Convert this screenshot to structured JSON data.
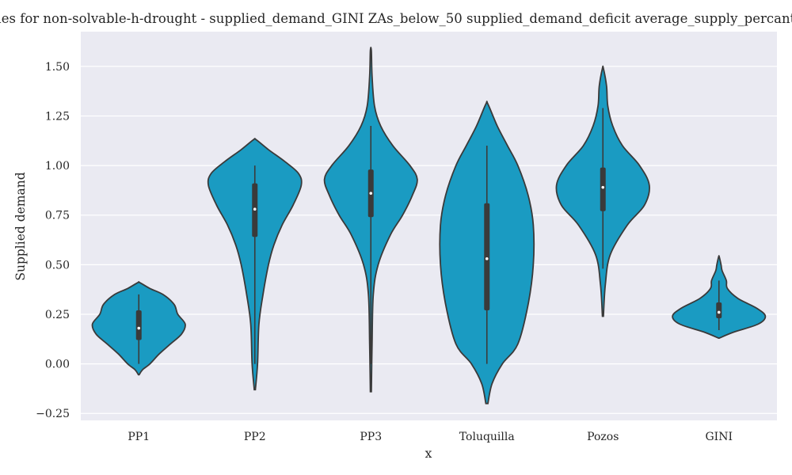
{
  "chart_data": {
    "type": "violin",
    "title": "Values for non-solvable-h-drought - supplied_demand_GINI ZAs_below_50 supplied_demand_deficit  average_supply_percantage",
    "xlabel": "x",
    "ylabel": "Supplied demand",
    "ylim": [
      -0.285,
      1.675
    ],
    "yticks": [
      -0.25,
      0.0,
      0.25,
      0.5,
      0.75,
      1.0,
      1.25,
      1.5
    ],
    "ytick_labels": [
      "−0.25",
      "0.00",
      "0.25",
      "0.50",
      "0.75",
      "1.00",
      "1.25",
      "1.50"
    ],
    "grid": true,
    "categories": [
      "PP1",
      "PP2",
      "PP3",
      "Toluquilla",
      "Pozos",
      "GINI"
    ],
    "colors": {
      "violin": "#1a9bc2",
      "edge": "#3a3a3a",
      "box": "#3a3a3a",
      "median": "#ffffff",
      "background": "#eaeaf2",
      "grid": "#ffffff"
    },
    "violins": [
      {
        "name": "PP1",
        "min": 0.0,
        "q1": 0.12,
        "median": 0.18,
        "q3": 0.27,
        "max": 0.35,
        "density": [
          [
            -0.055,
            0.2
          ],
          [
            -0.03,
            2
          ],
          [
            0.0,
            6
          ],
          [
            0.05,
            11
          ],
          [
            0.1,
            17
          ],
          [
            0.15,
            23
          ],
          [
            0.2,
            25
          ],
          [
            0.25,
            21
          ],
          [
            0.3,
            19
          ],
          [
            0.35,
            13
          ],
          [
            0.38,
            6
          ],
          [
            0.41,
            0.5
          ]
        ]
      },
      {
        "name": "PP2",
        "min": 0.0,
        "q1": 0.64,
        "median": 0.78,
        "q3": 0.91,
        "max": 1.0,
        "density": [
          [
            -0.13,
            0.2
          ],
          [
            0.0,
            1
          ],
          [
            0.2,
            1.5
          ],
          [
            0.35,
            3
          ],
          [
            0.5,
            5
          ],
          [
            0.6,
            7
          ],
          [
            0.7,
            10
          ],
          [
            0.8,
            14
          ],
          [
            0.9,
            17
          ],
          [
            0.96,
            16
          ],
          [
            1.02,
            11
          ],
          [
            1.08,
            5
          ],
          [
            1.13,
            0.5
          ]
        ]
      },
      {
        "name": "PP3",
        "min": 0.0,
        "q1": 0.74,
        "median": 0.86,
        "q3": 0.98,
        "max": 1.2,
        "density": [
          [
            -0.14,
            0.2
          ],
          [
            0.1,
            0.5
          ],
          [
            0.35,
            1
          ],
          [
            0.5,
            3
          ],
          [
            0.65,
            8
          ],
          [
            0.75,
            13
          ],
          [
            0.85,
            17
          ],
          [
            0.93,
            19
          ],
          [
            1.0,
            16
          ],
          [
            1.1,
            9
          ],
          [
            1.2,
            4
          ],
          [
            1.3,
            1.5
          ],
          [
            1.45,
            0.5
          ],
          [
            1.58,
            0.2
          ]
        ]
      },
      {
        "name": "Toluquilla",
        "min": 0.0,
        "q1": 0.27,
        "median": 0.53,
        "q3": 0.81,
        "max": 1.1,
        "density": [
          [
            -0.2,
            0.2
          ],
          [
            -0.1,
            1
          ],
          [
            0.0,
            3
          ],
          [
            0.1,
            6
          ],
          [
            0.3,
            8
          ],
          [
            0.5,
            9
          ],
          [
            0.7,
            9
          ],
          [
            0.85,
            8
          ],
          [
            1.0,
            6
          ],
          [
            1.1,
            4
          ],
          [
            1.2,
            2
          ],
          [
            1.31,
            0.2
          ]
        ]
      },
      {
        "name": "Pozos",
        "min": 0.48,
        "q1": 0.77,
        "median": 0.89,
        "q3": 0.99,
        "max": 1.29,
        "density": [
          [
            0.24,
            0.2
          ],
          [
            0.4,
            1
          ],
          [
            0.55,
            3
          ],
          [
            0.7,
            10
          ],
          [
            0.8,
            17
          ],
          [
            0.9,
            19
          ],
          [
            1.0,
            15
          ],
          [
            1.1,
            8
          ],
          [
            1.2,
            4
          ],
          [
            1.3,
            2
          ],
          [
            1.4,
            1.5
          ],
          [
            1.49,
            0.2
          ]
        ]
      },
      {
        "name": "GINI",
        "min": 0.17,
        "q1": 0.23,
        "median": 0.26,
        "q3": 0.31,
        "max": 0.42,
        "density": [
          [
            0.13,
            0.3
          ],
          [
            0.16,
            14
          ],
          [
            0.2,
            37
          ],
          [
            0.24,
            44
          ],
          [
            0.28,
            36
          ],
          [
            0.33,
            18
          ],
          [
            0.38,
            8
          ],
          [
            0.42,
            7
          ],
          [
            0.47,
            3
          ],
          [
            0.5,
            2
          ],
          [
            0.54,
            0.3
          ]
        ]
      }
    ]
  }
}
